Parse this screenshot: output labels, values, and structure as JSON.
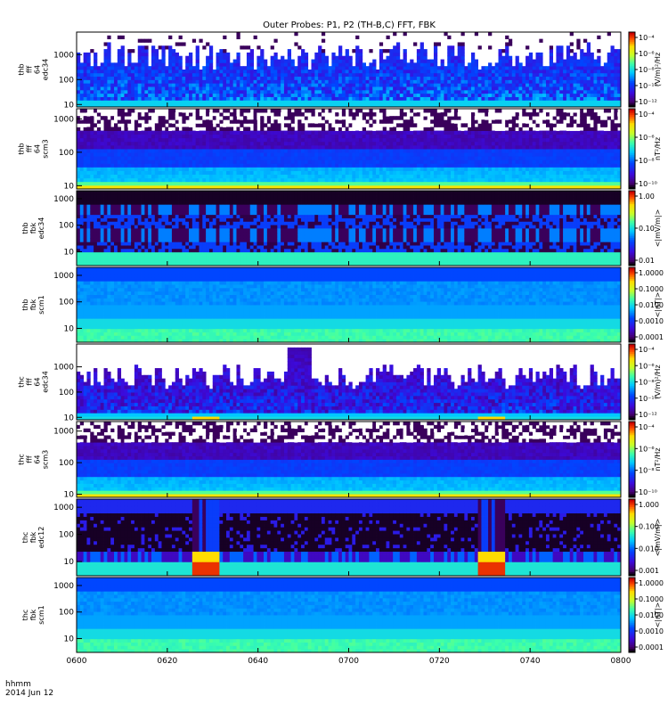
{
  "title": "Outer Probes: P1, P2 (TH-B,C) FFT, FBK",
  "footer": {
    "time_label": "hhmm",
    "date_label": "2014 Jun 12"
  },
  "x_axis": {
    "start": "06:00",
    "end": "08:00",
    "ticks": [
      "0600",
      "0620",
      "0640",
      "0700",
      "0720",
      "0740",
      "0800"
    ]
  },
  "chart_data": [
    {
      "type": "heatmap",
      "label_lines": [
        "thb",
        "fff",
        "64",
        "edc34"
      ],
      "yscale": "log",
      "ylim": [
        8,
        8000
      ],
      "yticks": [
        "10",
        "100",
        "1000"
      ],
      "colorbar": {
        "scale": "log",
        "ticks": [
          "10⁻¹²",
          "10⁻¹⁰",
          "10⁻⁸",
          "10⁻⁶",
          "10⁻⁴"
        ],
        "unit": "(V/m)²/Hz"
      },
      "style": "burst"
    },
    {
      "type": "heatmap",
      "label_lines": [
        "thb",
        "fff",
        "64",
        "scm3"
      ],
      "yscale": "log",
      "ylim": [
        8,
        2000
      ],
      "yticks": [
        "10",
        "100",
        "1000"
      ],
      "colorbar": {
        "scale": "log",
        "ticks": [
          "10⁻¹⁰",
          "10⁻⁸",
          "10⁻⁶",
          "10⁻⁴"
        ],
        "unit": "nT²/Hz"
      },
      "style": "bands"
    },
    {
      "type": "heatmap",
      "label_lines": [
        "thb",
        "fbk",
        "edc34"
      ],
      "yscale": "log",
      "ylim": [
        3,
        2000
      ],
      "yticks": [
        "10",
        "100",
        "1000"
      ],
      "colorbar": {
        "scale": "log",
        "ticks": [
          "0.01",
          "0.10",
          "1.00"
        ],
        "unit": "<|mV/m|>"
      },
      "style": "fbk-e"
    },
    {
      "type": "heatmap",
      "label_lines": [
        "thb",
        "fbk",
        "scm1"
      ],
      "yscale": "log",
      "ylim": [
        3,
        2000
      ],
      "yticks": [
        "10",
        "100",
        "1000"
      ],
      "colorbar": {
        "scale": "log",
        "ticks": [
          "0.0001",
          "0.0010",
          "0.0100",
          "0.1000",
          "1.0000"
        ],
        "unit": "<|nT|>"
      },
      "style": "fbk-b"
    },
    {
      "type": "heatmap",
      "label_lines": [
        "thc",
        "fff",
        "64",
        "edc34"
      ],
      "yscale": "log",
      "ylim": [
        8,
        8000
      ],
      "yticks": [
        "10",
        "100",
        "1000"
      ],
      "colorbar": {
        "scale": "log",
        "ticks": [
          "10⁻¹²",
          "10⁻¹⁰",
          "10⁻⁸",
          "10⁻⁶",
          "10⁻⁴"
        ],
        "unit": "(V/m)²/Hz"
      },
      "style": "burst-c"
    },
    {
      "type": "heatmap",
      "label_lines": [
        "thc",
        "fff",
        "64",
        "scm3"
      ],
      "yscale": "log",
      "ylim": [
        8,
        2000
      ],
      "yticks": [
        "10",
        "100",
        "1000"
      ],
      "colorbar": {
        "scale": "log",
        "ticks": [
          "10⁻¹⁰",
          "10⁻⁸",
          "10⁻⁶",
          "10⁻⁴"
        ],
        "unit": "nT²/Hz"
      },
      "style": "bands-c"
    },
    {
      "type": "heatmap",
      "label_lines": [
        "thc",
        "fbk",
        "edc12"
      ],
      "yscale": "log",
      "ylim": [
        3,
        2000
      ],
      "yticks": [
        "10",
        "100",
        "1000"
      ],
      "colorbar": {
        "scale": "log",
        "ticks": [
          "0.001",
          "0.010",
          "0.100",
          "1.000"
        ],
        "unit": "<|mV/m|>"
      },
      "style": "fbk-e-c"
    },
    {
      "type": "heatmap",
      "label_lines": [
        "thc",
        "fbk",
        "scm1"
      ],
      "yscale": "log",
      "ylim": [
        3,
        2000
      ],
      "yticks": [
        "10",
        "100",
        "1000"
      ],
      "colorbar": {
        "scale": "log",
        "ticks": [
          "0.0001",
          "0.0010",
          "0.0100",
          "0.1000",
          "1.0000"
        ],
        "unit": "<|nT|>"
      },
      "style": "fbk-b-c"
    }
  ]
}
